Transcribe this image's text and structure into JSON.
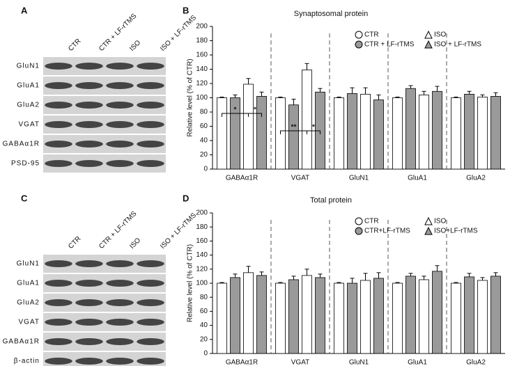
{
  "panel_labels": [
    "A",
    "B",
    "C",
    "D"
  ],
  "blots": [
    {
      "columns": [
        "CTR",
        "CTR + LF-rTMS",
        "ISO",
        "ISO + LF-rTMS"
      ],
      "rows": [
        "GluN1",
        "GluA1",
        "GluA2",
        "VGAT",
        "GABAα1R",
        "PSD-95"
      ]
    },
    {
      "columns": [
        "CTR",
        "CTR + LF-rTMS",
        "ISO",
        "ISO + LF-rTMS"
      ],
      "rows": [
        "GluN1",
        "GluA1",
        "GluA2",
        "VGAT",
        "GABAα1R",
        "β-actin"
      ]
    }
  ],
  "chart_data": [
    {
      "type": "bar",
      "title": "Synaptosomal protein",
      "y_label": "Relative level (% of CTR)",
      "categories": [
        "GABAα1R",
        "VGAT",
        "GluN1",
        "GluA1",
        "GluA2"
      ],
      "series": [
        {
          "name": "CTR",
          "color": "#ffffff",
          "marker": "circle",
          "values": [
            100,
            100,
            100,
            100,
            100
          ],
          "errors": [
            1,
            1,
            1,
            1,
            1
          ]
        },
        {
          "name": "CTR + LF-rTMS",
          "color": "#9a9a9a",
          "marker": "circle",
          "values": [
            100,
            90,
            106,
            113,
            105
          ],
          "errors": [
            4,
            8,
            8,
            4,
            4
          ]
        },
        {
          "name": "ISO",
          "color": "#ffffff",
          "marker": "triangle",
          "values": [
            119,
            139,
            105,
            104,
            101
          ],
          "errors": [
            8,
            9,
            9,
            5,
            3
          ]
        },
        {
          "name": "ISO + LF-rTMS",
          "color": "#9a9a9a",
          "marker": "triangle",
          "values": [
            102,
            108,
            97,
            109,
            102
          ],
          "errors": [
            6,
            5,
            7,
            7,
            5
          ]
        }
      ],
      "annotations": [
        "*",
        "*",
        "**",
        "*"
      ],
      "ylim": [
        0,
        200
      ],
      "yticks": [
        0,
        20,
        40,
        60,
        80,
        100,
        120,
        140,
        160,
        180,
        200
      ],
      "group_separators": true
    },
    {
      "type": "bar",
      "title": "Total protein",
      "y_label": "Relative level (% of CTR)",
      "categories": [
        "GABAα1R",
        "VGAT",
        "GluN1",
        "GluA1",
        "GluA2"
      ],
      "series": [
        {
          "name": "CTR",
          "color": "#ffffff",
          "marker": "circle",
          "values": [
            100,
            100,
            100,
            100,
            100
          ],
          "errors": [
            1,
            1,
            1,
            1,
            1
          ]
        },
        {
          "name": "CTR+LF-rTMS",
          "color": "#9a9a9a",
          "marker": "circle",
          "values": [
            108,
            105,
            100,
            110,
            109
          ],
          "errors": [
            5,
            5,
            7,
            4,
            5
          ]
        },
        {
          "name": "ISO",
          "color": "#ffffff",
          "marker": "triangle",
          "values": [
            115,
            111,
            104,
            105,
            104
          ],
          "errors": [
            9,
            9,
            10,
            5,
            4
          ]
        },
        {
          "name": "ISO+LF-rTMS",
          "color": "#9a9a9a",
          "marker": "triangle",
          "values": [
            111,
            108,
            107,
            117,
            110
          ],
          "errors": [
            5,
            5,
            8,
            8,
            5
          ]
        }
      ],
      "annotations": [],
      "ylim": [
        0,
        200
      ],
      "yticks": [
        0,
        20,
        40,
        60,
        80,
        100,
        120,
        140,
        160,
        180,
        200
      ],
      "group_separators": true
    }
  ]
}
